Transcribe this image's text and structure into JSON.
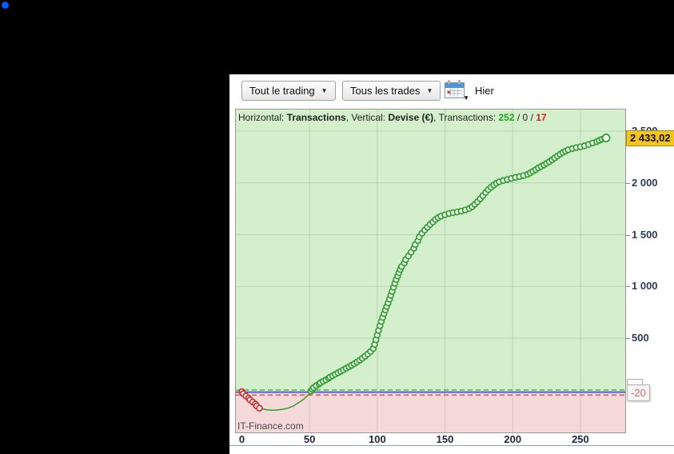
{
  "window": {
    "background": "#000000",
    "indicator_dot_color": "#0a57ff"
  },
  "toolbar": {
    "trading_scope_dropdown": "Tout le trading",
    "trades_filter_dropdown": "Tous les trades",
    "dropdown_caret": "▼",
    "calendar_icon": "calendar",
    "calendar_label": "Hier"
  },
  "chart": {
    "header": {
      "prefix": "Horizontal: ",
      "h_value": "Transactions",
      "mid": ", Vertical: ",
      "v_value": "Devise (€)",
      "suffix": ", Transactions: ",
      "wins": "252",
      "slash1": " / ",
      "neutral": "0",
      "slash2": " / ",
      "losses": "17",
      "wins_color": "#23a223",
      "losses_color": "#cc2222"
    },
    "watermark": "IT-Finance.com",
    "current_value_label": "2 433,02",
    "level_badge_label": "-20"
  },
  "chart_data": {
    "type": "line",
    "title": "Horizontal: Transactions, Vertical: Devise (€), Transactions: 252 / 0 / 17",
    "xlabel": "Transactions",
    "ylabel": "Devise (€)",
    "transactions_won": 252,
    "transactions_neutral": 0,
    "transactions_lost": 17,
    "final_value": 2433.02,
    "xlim": [
      -4.4,
      283.1
    ],
    "ylim": [
      -409,
      2708
    ],
    "grid": true,
    "x_ticks": [
      {
        "v": 0,
        "label": "0"
      },
      {
        "v": 50,
        "label": "50"
      },
      {
        "v": 100,
        "label": "100"
      },
      {
        "v": 150,
        "label": "150"
      },
      {
        "v": 200,
        "label": "200"
      },
      {
        "v": 250,
        "label": "250"
      }
    ],
    "y_ticks": [
      {
        "v": 2500,
        "label": "2 500"
      },
      {
        "v": 2000,
        "label": "2 000"
      },
      {
        "v": 1500,
        "label": "1 500"
      },
      {
        "v": 1000,
        "label": "1 000"
      },
      {
        "v": 500,
        "label": "500"
      }
    ],
    "levels": [
      {
        "value": 0,
        "color": "#3bbf3b",
        "dash": "6,4",
        "width": 1.5
      },
      {
        "value": -20,
        "color": "#5b5be0",
        "dash": "",
        "width": 2
      },
      {
        "value": -48,
        "color": "#e05555",
        "dash": "6,4",
        "width": 1.5
      }
    ],
    "split_level": -20,
    "colors": {
      "bg_positive": "#d4efcc",
      "bg_negative": "#f5d9d9",
      "grid": "rgba(90,125,90,0.22)",
      "line_win": "#2f9e2f",
      "line_loss": "#cc3333",
      "marker_fill": "#ffffff"
    },
    "points": [
      [
        0,
        -15,
        2
      ],
      [
        1,
        -35,
        2
      ],
      [
        3,
        -57,
        2
      ],
      [
        5,
        -78,
        2
      ],
      [
        6,
        -95,
        2
      ],
      [
        8,
        -115,
        2
      ],
      [
        10,
        -135,
        2
      ],
      [
        11,
        -155,
        2
      ],
      [
        13,
        -175,
        2
      ],
      [
        16,
        -184,
        0
      ],
      [
        19,
        -191,
        0
      ],
      [
        22,
        -195,
        0
      ],
      [
        26,
        -193,
        0
      ],
      [
        30,
        -186,
        0
      ],
      [
        34,
        -175,
        0
      ],
      [
        38,
        -155,
        0
      ],
      [
        41,
        -130,
        0
      ],
      [
        44,
        -104,
        0
      ],
      [
        46,
        -84,
        0
      ],
      [
        48,
        -60,
        0
      ],
      [
        50,
        -34,
        0
      ],
      [
        51,
        -10,
        1
      ],
      [
        52,
        8,
        1
      ],
      [
        53,
        24,
        1
      ],
      [
        55,
        42,
        1
      ],
      [
        57,
        58,
        1
      ],
      [
        58,
        70,
        1
      ],
      [
        60,
        84,
        1
      ],
      [
        62,
        98,
        1
      ],
      [
        64,
        112,
        1
      ],
      [
        65,
        124,
        1
      ],
      [
        67,
        138,
        1
      ],
      [
        69,
        152,
        1
      ],
      [
        71,
        166,
        1
      ],
      [
        73,
        180,
        1
      ],
      [
        75,
        194,
        1
      ],
      [
        77,
        210,
        1
      ],
      [
        79,
        224,
        1
      ],
      [
        81,
        238,
        1
      ],
      [
        83,
        254,
        1
      ],
      [
        85,
        270,
        1
      ],
      [
        87,
        288,
        1
      ],
      [
        89,
        306,
        1
      ],
      [
        91,
        326,
        1
      ],
      [
        93,
        348,
        1
      ],
      [
        95,
        372,
        1
      ],
      [
        97,
        400,
        1
      ],
      [
        98,
        440,
        1
      ],
      [
        99,
        485,
        1
      ],
      [
        100,
        530,
        1
      ],
      [
        101,
        575,
        1
      ],
      [
        102,
        620,
        1
      ],
      [
        103,
        662,
        1
      ],
      [
        104,
        700,
        1
      ],
      [
        105,
        737,
        1
      ],
      [
        106,
        772,
        1
      ],
      [
        107,
        806,
        1
      ],
      [
        108,
        840,
        1
      ],
      [
        109,
        876,
        1
      ],
      [
        110,
        914,
        1
      ],
      [
        111,
        952,
        1
      ],
      [
        112,
        992,
        1
      ],
      [
        113,
        1030,
        1
      ],
      [
        114,
        1066,
        1
      ],
      [
        115,
        1100,
        1
      ],
      [
        116,
        1132,
        1
      ],
      [
        117,
        1163,
        1
      ],
      [
        118,
        1192,
        1
      ],
      [
        120,
        1227,
        1
      ],
      [
        121,
        1258,
        1
      ],
      [
        123,
        1294,
        1
      ],
      [
        125,
        1330,
        1
      ],
      [
        127,
        1368,
        1
      ],
      [
        128,
        1404,
        1
      ],
      [
        130,
        1442,
        1
      ],
      [
        131,
        1478,
        1
      ],
      [
        133,
        1512,
        1
      ],
      [
        135,
        1544,
        1
      ],
      [
        137,
        1572,
        1
      ],
      [
        139,
        1598,
        1
      ],
      [
        141,
        1622,
        1
      ],
      [
        143,
        1645,
        1
      ],
      [
        145,
        1664,
        1
      ],
      [
        147,
        1678,
        1
      ],
      [
        150,
        1692,
        1
      ],
      [
        153,
        1704,
        1
      ],
      [
        156,
        1712,
        1
      ],
      [
        159,
        1719,
        1
      ],
      [
        162,
        1727,
        1
      ],
      [
        165,
        1738,
        1
      ],
      [
        168,
        1752,
        1
      ],
      [
        170,
        1770,
        1
      ],
      [
        172,
        1792,
        1
      ],
      [
        174,
        1818,
        1
      ],
      [
        176,
        1846,
        1
      ],
      [
        178,
        1876,
        1
      ],
      [
        180,
        1906,
        1
      ],
      [
        182,
        1934,
        1
      ],
      [
        184,
        1958,
        1
      ],
      [
        186,
        1978,
        1
      ],
      [
        188,
        1996,
        1
      ],
      [
        190,
        2010,
        1
      ],
      [
        193,
        2022,
        1
      ],
      [
        196,
        2032,
        1
      ],
      [
        199,
        2042,
        1
      ],
      [
        202,
        2052,
        1
      ],
      [
        205,
        2060,
        1
      ],
      [
        208,
        2070,
        1
      ],
      [
        211,
        2082,
        1
      ],
      [
        213,
        2096,
        1
      ],
      [
        215,
        2112,
        1
      ],
      [
        217,
        2128,
        1
      ],
      [
        219,
        2144,
        1
      ],
      [
        221,
        2158,
        1
      ],
      [
        223,
        2172,
        1
      ],
      [
        225,
        2188,
        1
      ],
      [
        227,
        2204,
        1
      ],
      [
        229,
        2222,
        1
      ],
      [
        231,
        2240,
        1
      ],
      [
        233,
        2258,
        1
      ],
      [
        235,
        2276,
        1
      ],
      [
        237,
        2292,
        1
      ],
      [
        239,
        2306,
        1
      ],
      [
        241,
        2318,
        1
      ],
      [
        244,
        2330,
        1
      ],
      [
        247,
        2340,
        1
      ],
      [
        250,
        2348,
        1
      ],
      [
        253,
        2358,
        1
      ],
      [
        256,
        2370,
        1
      ],
      [
        259,
        2384,
        1
      ],
      [
        262,
        2398,
        1
      ],
      [
        264,
        2410,
        1
      ],
      [
        266,
        2420,
        1
      ],
      [
        268,
        2428,
        1
      ],
      [
        269,
        2433.02,
        1
      ]
    ]
  }
}
